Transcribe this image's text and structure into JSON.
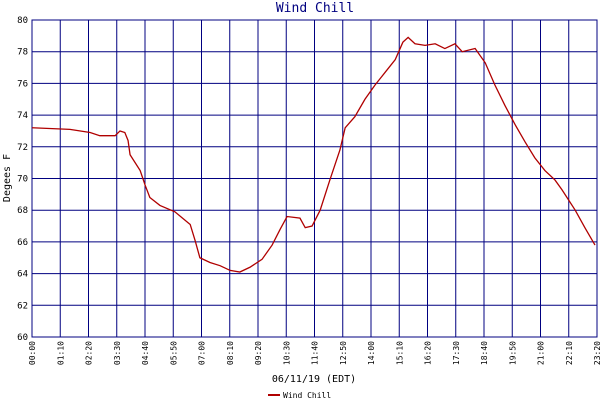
{
  "chart_data": {
    "type": "line",
    "title": "Wind Chill",
    "y_label": "Degees F",
    "x_label": "06/11/19 (EDT)",
    "x": [
      0,
      94,
      144,
      168,
      206,
      218,
      230,
      238,
      243,
      268,
      280,
      292,
      317,
      354,
      392,
      404,
      416,
      441,
      466,
      491,
      515,
      540,
      570,
      595,
      615,
      632,
      664,
      677,
      694,
      714,
      738,
      763,
      776,
      800,
      825,
      850,
      875,
      900,
      919,
      932,
      949,
      974,
      999,
      1023,
      1048,
      1066,
      1098,
      1123,
      1147,
      1172,
      1197,
      1222,
      1246,
      1271,
      1296,
      1313,
      1346,
      1370,
      1395
    ],
    "series": [
      {
        "name": "Wind Chill",
        "color": "#b00000",
        "values": [
          73.2,
          73.1,
          72.9,
          72.7,
          72.7,
          73.0,
          72.9,
          72.4,
          71.5,
          70.5,
          69.6,
          68.8,
          68.3,
          67.9,
          67.1,
          66.1,
          65.0,
          64.7,
          64.5,
          64.2,
          64.1,
          64.4,
          64.9,
          65.8,
          66.8,
          67.6,
          67.5,
          66.9,
          67.0,
          68.0,
          69.9,
          71.8,
          73.2,
          73.9,
          75.0,
          75.9,
          76.7,
          77.5,
          78.6,
          78.9,
          78.5,
          78.4,
          78.5,
          78.2,
          78.5,
          78.0,
          78.2,
          77.3,
          75.9,
          74.6,
          73.4,
          72.3,
          71.3,
          70.5,
          69.9,
          69.3,
          68.0,
          66.9,
          65.8
        ]
      }
    ],
    "xlim": [
      0,
      1400
    ],
    "xticks": [
      {
        "value": 0,
        "label": "00:00"
      },
      {
        "value": 70,
        "label": "01:10"
      },
      {
        "value": 140,
        "label": "02:20"
      },
      {
        "value": 210,
        "label": "03:30"
      },
      {
        "value": 280,
        "label": "04:40"
      },
      {
        "value": 350,
        "label": "05:50"
      },
      {
        "value": 420,
        "label": "07:00"
      },
      {
        "value": 490,
        "label": "08:10"
      },
      {
        "value": 560,
        "label": "09:20"
      },
      {
        "value": 630,
        "label": "10:30"
      },
      {
        "value": 700,
        "label": "11:40"
      },
      {
        "value": 770,
        "label": "12:50"
      },
      {
        "value": 840,
        "label": "14:00"
      },
      {
        "value": 910,
        "label": "15:10"
      },
      {
        "value": 980,
        "label": "16:20"
      },
      {
        "value": 1050,
        "label": "17:30"
      },
      {
        "value": 1120,
        "label": "18:40"
      },
      {
        "value": 1190,
        "label": "19:50"
      },
      {
        "value": 1260,
        "label": "21:00"
      },
      {
        "value": 1330,
        "label": "22:10"
      },
      {
        "value": 1400,
        "label": "23:20"
      }
    ],
    "ylim": [
      60,
      80
    ],
    "yticks": [
      60,
      62,
      64,
      66,
      68,
      70,
      72,
      74,
      76,
      78,
      80
    ],
    "grid": true,
    "grid_color": "#000080"
  }
}
